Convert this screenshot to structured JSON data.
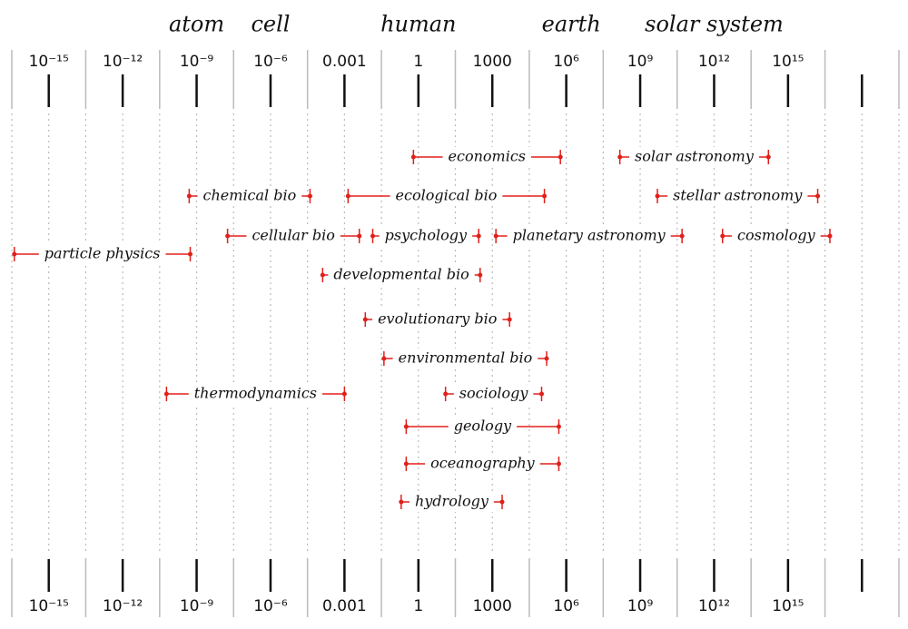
{
  "chart_data": {
    "type": "range",
    "color": "#e0201b",
    "xscale": "log",
    "xlim": [
      3.1623e-17,
      3.1623e+19
    ],
    "xticks": [
      {
        "value": 1e-15,
        "label": "10⁻¹⁵"
      },
      {
        "value": 1e-12,
        "label": "10⁻¹²"
      },
      {
        "value": 1e-09,
        "label": "10⁻⁹"
      },
      {
        "value": 1e-06,
        "label": "10⁻⁶"
      },
      0.001,
      1,
      1000,
      {
        "value": 1000000.0,
        "label": "10⁶"
      },
      {
        "value": 1000000000.0,
        "label": "10⁹"
      },
      {
        "value": 1000000000000.0,
        "label": "10¹²"
      },
      {
        "value": 1000000000000000.0,
        "label": "10¹⁵"
      },
      {
        "value": 1e+18,
        "label": null
      }
    ],
    "scale_labels": [
      {
        "label": "atom",
        "x": 1e-09
      },
      {
        "label": "cell",
        "x": 1e-06
      },
      {
        "label": "human",
        "x": 1
      },
      {
        "label": "earth",
        "x": 1600000.0
      },
      {
        "label": "solar system",
        "x": 1000000000000.0
      }
    ],
    "ranges": [
      {
        "label": "economics",
        "values": [
          0.63,
          580000
        ]
      },
      {
        "label": "solar astronomy",
        "values": [
          150000000.0,
          160000000000000.0
        ]
      },
      {
        "label": "chemical bio",
        "values": [
          5e-10,
          4e-05
        ]
      },
      {
        "label": "ecological bio",
        "values": [
          0.0014,
          130000
        ]
      },
      {
        "label": "stellar astronomy",
        "values": [
          5000000000.0,
          1.6e+16
        ]
      },
      {
        "label": "cellular bio",
        "values": [
          1.8e-08,
          0.004
        ]
      },
      {
        "label": "psychology",
        "values": [
          0.014,
          280
        ]
      },
      {
        "label": "planetary astronomy",
        "values": [
          1400,
          50000000000.0
        ]
      },
      {
        "label": "cosmology",
        "values": [
          2200000000000.0,
          5e+16
        ]
      },
      {
        "label": "particle physics",
        "values": [
          4e-17,
          5.5e-10
        ]
      },
      {
        "label": "developmental bio",
        "values": [
          0.00013,
          320
        ]
      },
      {
        "label": "evolutionary bio",
        "values": [
          0.007,
          5000
        ]
      },
      {
        "label": "environmental bio",
        "values": [
          0.04,
          160000
        ]
      },
      {
        "label": "thermodynamics",
        "values": [
          6e-11,
          0.001
        ]
      },
      {
        "label": "sociology",
        "values": [
          12.6,
          100000
        ]
      },
      {
        "label": "geology",
        "values": [
          0.32,
          500000
        ]
      },
      {
        "label": "oceanography",
        "values": [
          0.32,
          500000
        ]
      },
      {
        "label": "hydrology",
        "values": [
          0.2,
          2500
        ]
      }
    ]
  }
}
